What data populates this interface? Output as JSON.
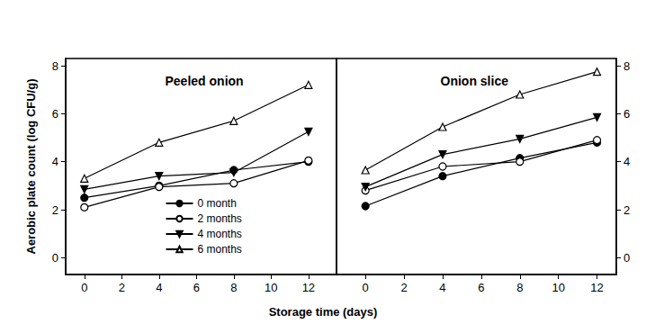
{
  "chart_data": [
    {
      "type": "line",
      "title": "Peeled onion",
      "xlabel": "Storage time (days)",
      "ylabel": "Aerobic plate count (log CFU/g)",
      "xlim": [
        -1,
        13.5
      ],
      "xticks": [
        0,
        2,
        4,
        6,
        8,
        10,
        12
      ],
      "ylim": [
        -0.7,
        8.3
      ],
      "yticks": [
        0,
        2,
        4,
        6,
        8
      ],
      "legend": "lower center",
      "x": [
        0,
        4,
        8,
        12
      ],
      "series": [
        {
          "name": "0 month",
          "color": "#000000",
          "marker": "circle",
          "line_style": "solid",
          "values": [
            2.5,
            3.0,
            3.65,
            4.0
          ]
        },
        {
          "name": "2 months",
          "color": "#000000",
          "marker": "open_circle",
          "line_style": "solid",
          "values": [
            2.1,
            2.95,
            3.1,
            4.05
          ]
        },
        {
          "name": "4 months",
          "color": "#000000",
          "marker": "triangle_down",
          "line_style": "solid",
          "values": [
            2.85,
            3.4,
            3.55,
            5.25
          ]
        },
        {
          "name": "6 months",
          "color": "#000000",
          "marker": "open_triangle",
          "line_style": "solid",
          "values": [
            3.3,
            4.8,
            5.7,
            7.2
          ]
        }
      ]
    },
    {
      "type": "line",
      "title": "Onion slice",
      "xlim": [
        -1.5,
        13
      ],
      "xticks": [
        0,
        2,
        4,
        6,
        8,
        10,
        12
      ],
      "ylim": [
        -0.7,
        8.3
      ],
      "yticks": [
        0,
        2,
        4,
        6,
        8
      ],
      "x": [
        0,
        4,
        8,
        12
      ],
      "series": [
        {
          "name": "0 month",
          "color": "#000000",
          "marker": "circle",
          "line_style": "solid",
          "values": [
            2.15,
            3.4,
            4.15,
            4.8
          ]
        },
        {
          "name": "2 months",
          "color": "#000000",
          "marker": "open_circle",
          "line_style": "solid",
          "values": [
            2.8,
            3.8,
            4.0,
            4.9
          ]
        },
        {
          "name": "4 months",
          "color": "#000000",
          "marker": "triangle_down",
          "line_style": "solid",
          "values": [
            2.95,
            4.3,
            4.95,
            5.85
          ]
        },
        {
          "name": "6 months",
          "color": "#000000",
          "marker": "open_triangle",
          "line_style": "solid",
          "values": [
            3.65,
            5.45,
            6.8,
            7.75
          ]
        }
      ]
    }
  ]
}
